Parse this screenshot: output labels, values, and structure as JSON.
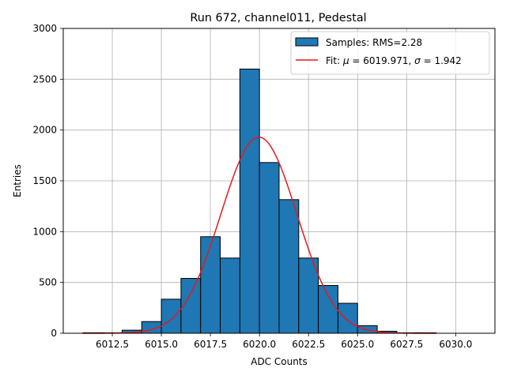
{
  "chart_data": {
    "type": "bar",
    "title": "Run 672, channel011, Pedestal",
    "xlabel": "ADC Counts",
    "ylabel": "Entries",
    "xlim": [
      6010.0,
      6032.0
    ],
    "ylim": [
      0,
      3000
    ],
    "xticks": [
      6012.5,
      6015.0,
      6017.5,
      6020.0,
      6022.5,
      6025.0,
      6027.5,
      6030.0
    ],
    "xtick_labels": [
      "6012.5",
      "6015.0",
      "6017.5",
      "6020.0",
      "6022.5",
      "6025.0",
      "6027.5",
      "6030.0"
    ],
    "yticks": [
      0,
      500,
      1000,
      1500,
      2000,
      2500,
      3000
    ],
    "ytick_labels": [
      "0",
      "500",
      "1000",
      "1500",
      "2000",
      "2500",
      "3000"
    ],
    "grid": true,
    "legend_position": "top-right",
    "histogram": {
      "name": "Samples: RMS=2.28",
      "color": "#1f77b4",
      "edge_color": "#000000",
      "bins": [
        {
          "left": 6011.0,
          "right": 6012.0,
          "count": 5
        },
        {
          "left": 6012.0,
          "right": 6013.0,
          "count": 5
        },
        {
          "left": 6013.0,
          "right": 6014.0,
          "count": 30
        },
        {
          "left": 6014.0,
          "right": 6015.0,
          "count": 115
        },
        {
          "left": 6015.0,
          "right": 6016.0,
          "count": 335
        },
        {
          "left": 6016.0,
          "right": 6017.0,
          "count": 540
        },
        {
          "left": 6017.0,
          "right": 6018.0,
          "count": 950
        },
        {
          "left": 6018.0,
          "right": 6019.0,
          "count": 740
        },
        {
          "left": 6019.0,
          "right": 6020.0,
          "count": 2600
        },
        {
          "left": 6020.0,
          "right": 6021.0,
          "count": 1680
        },
        {
          "left": 6021.0,
          "right": 6022.0,
          "count": 1315
        },
        {
          "left": 6022.0,
          "right": 6023.0,
          "count": 740
        },
        {
          "left": 6023.0,
          "right": 6024.0,
          "count": 470
        },
        {
          "left": 6024.0,
          "right": 6025.0,
          "count": 295
        },
        {
          "left": 6025.0,
          "right": 6026.0,
          "count": 75
        },
        {
          "left": 6026.0,
          "right": 6027.0,
          "count": 20
        },
        {
          "left": 6027.0,
          "right": 6028.0,
          "count": 5
        },
        {
          "left": 6028.0,
          "right": 6029.0,
          "count": 5
        }
      ]
    },
    "fit": {
      "legend_prefix": "Fit: ",
      "mu_symbol": "μ",
      "mu_text": " = 6019.971, ",
      "sigma_symbol": "σ",
      "sigma_text": " = 1.942",
      "mu": 6019.971,
      "sigma": 1.942,
      "amplitude": 1930,
      "x_range": [
        6011.0,
        6029.0
      ],
      "color": "#e41a1c"
    }
  }
}
